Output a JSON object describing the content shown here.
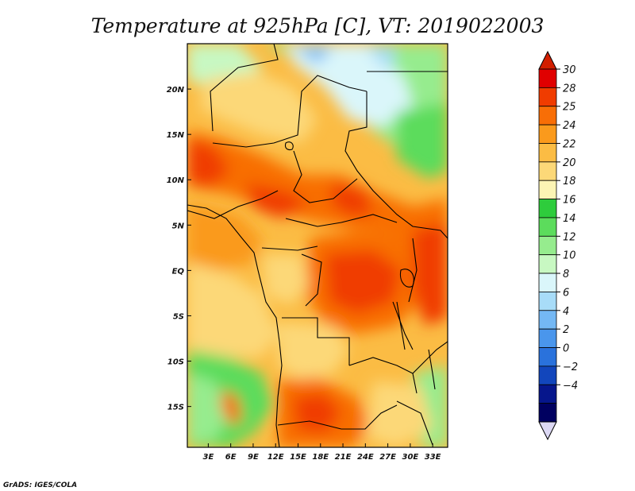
{
  "chart_data": {
    "type": "heatmap",
    "title": "Temperature at 925hPa [C], VT: 2019022003",
    "variable": "Temperature",
    "level": "925hPa",
    "units": "C",
    "valid_time": "2019022003",
    "x_ticks": [
      "3E",
      "6E",
      "9E",
      "12E",
      "15E",
      "18E",
      "21E",
      "24E",
      "27E",
      "30E",
      "33E"
    ],
    "y_ticks": [
      "20N",
      "15N",
      "10N",
      "5N",
      "EQ",
      "5S",
      "10S",
      "15S"
    ],
    "x_values": [
      3,
      6,
      9,
      12,
      15,
      18,
      21,
      24,
      27,
      30,
      33
    ],
    "y_values": [
      20,
      15,
      10,
      5,
      0,
      -5,
      -10,
      -15
    ],
    "lon_range": [
      0.2,
      35
    ],
    "lat_range": [
      -19.5,
      25
    ],
    "colorbar": {
      "levels": [
        "30",
        "28",
        "25",
        "24",
        "22",
        "20",
        "18",
        "16",
        "14",
        "12",
        "10",
        "8",
        "6",
        "4",
        "2",
        "0",
        "−2",
        "−4"
      ],
      "colors": [
        "#e00000",
        "#f03c00",
        "#f86e06",
        "#fa9a1c",
        "#fbbc44",
        "#fcd878",
        "#fcf4b4",
        "#2ecc3c",
        "#5cdc5c",
        "#96ec8e",
        "#c8f8c2",
        "#daf6fa",
        "#a8dcf8",
        "#74b8f4",
        "#4a96ec",
        "#2a72dc",
        "#1246bc",
        "#06168c",
        "#000060"
      ],
      "top_color": "#d21e00",
      "bottom_color": "#dcd8f4"
    }
  },
  "credit": "GrADS: IGES/COLA"
}
